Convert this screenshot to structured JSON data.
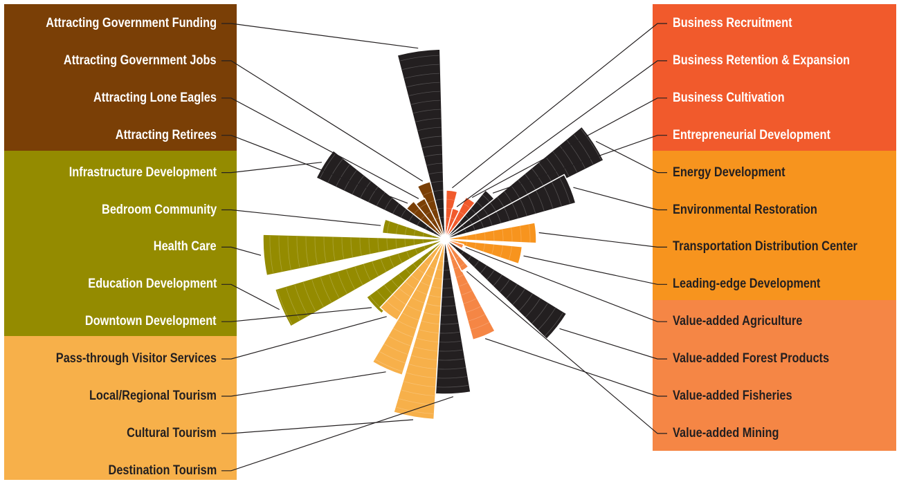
{
  "chart_data": {
    "type": "polar-bar",
    "title": "",
    "groups": [
      {
        "name": "",
        "color": "#7a3f06",
        "text_color": "#ffffff"
      },
      {
        "name": "",
        "color": "#948b00",
        "text_color": "#ffffff"
      },
      {
        "name": "",
        "color": "#f7b04a",
        "text_color": "#231f20"
      },
      {
        "name": "",
        "color": "#f15a2c",
        "text_color": "#ffffff"
      },
      {
        "name": "",
        "color": "#f7941e",
        "text_color": "#231f20"
      },
      {
        "name": "",
        "color": "#f58645",
        "text_color": "#231f20"
      }
    ],
    "categories": [
      {
        "label": "Attracting Government Funding",
        "value": 269,
        "group": 0,
        "angle": -8,
        "fill": "#231f20"
      },
      {
        "label": "Attracting Government Jobs",
        "value": 80,
        "group": 0,
        "angle": -21,
        "fill": "#7a3f06"
      },
      {
        "label": "Attracting Lone Eagles",
        "value": 60,
        "group": 0,
        "angle": -33,
        "fill": "#7a3f06"
      },
      {
        "label": "Attracting Retirees",
        "value": 65,
        "group": 0,
        "angle": -46,
        "fill": "#7a3f06"
      },
      {
        "label": "Infrastructure Development",
        "value": 200,
        "group": 1,
        "angle": -58,
        "fill": "#231f20"
      },
      {
        "label": "Bedroom Community",
        "value": 85,
        "group": 1,
        "angle": -78,
        "fill": "#948b00"
      },
      {
        "label": "Health Care",
        "value": 257,
        "group": 1,
        "angle": -95,
        "fill": "#948b00"
      },
      {
        "label": "Education Development",
        "value": 250,
        "group": 1,
        "angle": -113,
        "fill": "#948b00"
      },
      {
        "label": "Downtown Development",
        "value": 135,
        "group": 1,
        "angle": -133,
        "fill": "#948b00"
      },
      {
        "label": "Pass-through Visitor Services",
        "value": 130,
        "group": 2,
        "angle": -143,
        "fill": "#f7b04a"
      },
      {
        "label": "Local/Regional Tourism",
        "value": 200,
        "group": 2,
        "angle": -156,
        "fill": "#f7b04a"
      },
      {
        "label": "Cultural Tourism",
        "value": 255,
        "group": 2,
        "angle": -170,
        "fill": "#f7b04a"
      },
      {
        "label": "Destination Tourism",
        "value": 218,
        "group": 2,
        "angle": 177,
        "fill": "#231f20"
      },
      {
        "label": "Business Recruitment",
        "value": 65,
        "group": 3,
        "angle": 8,
        "fill": "#f15a2c"
      },
      {
        "label": "Business Retention & Expansion",
        "value": 40,
        "group": 3,
        "angle": 20,
        "fill": "#f15a2c"
      },
      {
        "label": "Business Cultivation",
        "value": 62,
        "group": 3,
        "angle": 33,
        "fill": "#f15a2c"
      },
      {
        "label": "Entrepreneurial Development",
        "value": 86,
        "group": 3,
        "angle": 46,
        "fill": "#231f20"
      },
      {
        "label": "Energy Development",
        "value": 250,
        "group": 4,
        "angle": 57,
        "fill": "#231f20"
      },
      {
        "label": "Environmental Restoration",
        "value": 190,
        "group": 4,
        "angle": 68,
        "fill": "#231f20"
      },
      {
        "label": "Transportation Distribution Center",
        "value": 126,
        "group": 4,
        "angle": 86,
        "fill": "#f7941e"
      },
      {
        "label": "Leading-edge Development",
        "value": 106,
        "group": 4,
        "angle": 102,
        "fill": "#f7941e"
      },
      {
        "label": "Value-added Agriculture",
        "value": 22,
        "group": 5,
        "angle": 112,
        "fill": "#f58645"
      },
      {
        "label": "Value-added Forest Products",
        "value": 200,
        "group": 5,
        "angle": 128,
        "fill": "#231f20"
      },
      {
        "label": "Value-added Fisheries",
        "value": 145,
        "group": 5,
        "angle": 158,
        "fill": "#f58645"
      },
      {
        "label": "Value-added Mining",
        "value": 46,
        "group": 5,
        "angle": 146,
        "fill": "#f58645"
      }
    ]
  }
}
